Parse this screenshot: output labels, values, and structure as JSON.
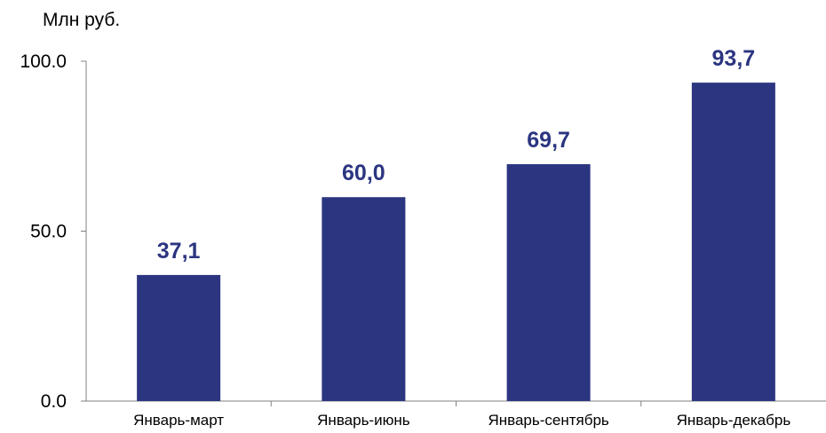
{
  "chart_data": {
    "type": "bar",
    "unit_label": "Млн руб.",
    "categories": [
      "Январь-март",
      "Январь-июнь",
      "Январь-сентябрь",
      "Январь-декабрь"
    ],
    "values": [
      37.1,
      60.0,
      69.7,
      93.7
    ],
    "data_labels": [
      "37,1",
      "60,0",
      "69,7",
      "93,7"
    ],
    "ylim": [
      0,
      100
    ],
    "yticks": [
      {
        "value": 0,
        "label": "0.0"
      },
      {
        "value": 50,
        "label": "50.0"
      },
      {
        "value": 100,
        "label": "100.0"
      }
    ],
    "grid": false,
    "legend": "none",
    "colors": {
      "bar": "#2B3580",
      "data_label": "#2B3580",
      "axis": "#808080"
    }
  }
}
